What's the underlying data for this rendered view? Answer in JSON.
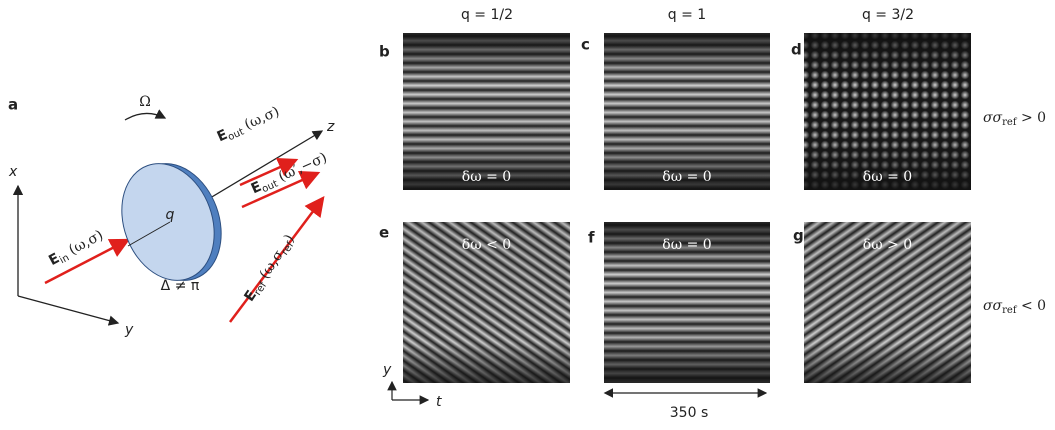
{
  "diagram": {
    "label": "a",
    "axes": {
      "x": "x",
      "y": "y",
      "z": "z"
    },
    "rotation": "Ω",
    "plate": "q",
    "retardance": "Δ ≠ π",
    "fields": [
      {
        "symbol": "E",
        "subscript": "in",
        "args": "(ω,σ)"
      },
      {
        "symbol": "E",
        "subscript": "out",
        "args": "(ω,σ)"
      },
      {
        "symbol": "E",
        "subscript": "out",
        "args": "(ω′,−σ)"
      },
      {
        "symbol": "E",
        "subscript": "ref",
        "args": "(ω,σ",
        "args_subscript": "ref",
        "args_end": ")"
      }
    ]
  },
  "columns": [
    "q = 1/2",
    "q = 1",
    "q = 3/2"
  ],
  "rows": [
    {
      "prefix": "σσ",
      "subscript": "ref",
      "suffix": " > 0"
    },
    {
      "prefix": "σσ",
      "subscript": "ref",
      "suffix": " < 0"
    }
  ],
  "images": [
    {
      "label": "b",
      "annotation": "δω = 0"
    },
    {
      "label": "c",
      "annotation": "δω = 0"
    },
    {
      "label": "d",
      "annotation": "δω = 0"
    },
    {
      "label": "e",
      "annotation": "δω < 0"
    },
    {
      "label": "f",
      "annotation": "δω = 0"
    },
    {
      "label": "g",
      "annotation": "δω > 0"
    }
  ],
  "image_axes": {
    "y": "y",
    "t": "t"
  },
  "time_span": "350 s"
}
